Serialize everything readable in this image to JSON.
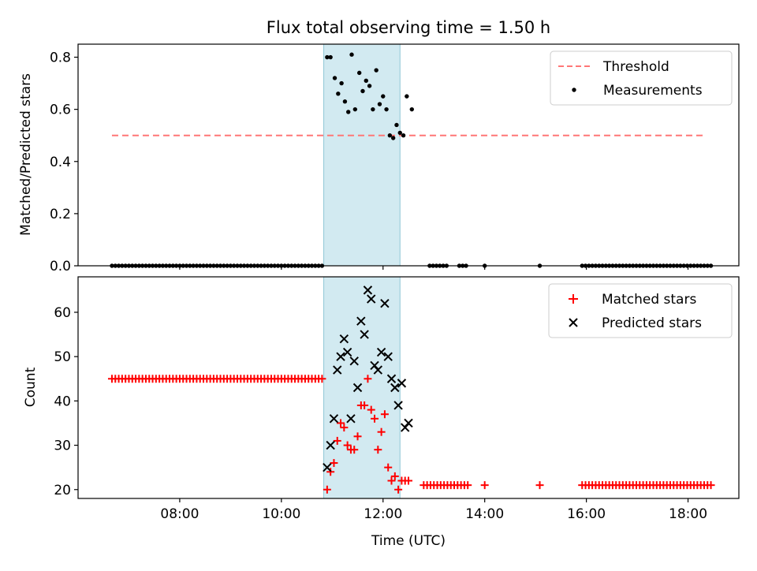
{
  "title": "Flux total observing time = 1.50 h",
  "chart_data": [
    {
      "type": "scatter",
      "ylabel": "Matched/Predicted stars",
      "ylim": [
        0,
        0.85
      ],
      "yticks": [
        0.0,
        0.2,
        0.4,
        0.6,
        0.8
      ],
      "ytick_labels": [
        "0.0",
        "0.2",
        "0.4",
        "0.6",
        "0.8"
      ],
      "xlim": [
        "06:00",
        "19:00"
      ],
      "shaded_span": [
        "10:50",
        "12:20"
      ],
      "shade_color": "#add8e6",
      "legend_position": "upper right",
      "series": [
        {
          "name": "Threshold",
          "style": "dashed-line",
          "color": "#ff7777",
          "x": [
            "06:40",
            "18:20"
          ],
          "y": [
            0.5,
            0.5
          ]
        },
        {
          "name": "Measurements",
          "style": "dot",
          "color": "#000000",
          "points": [
            [
              "10:54",
              0.8
            ],
            [
              "10:58",
              0.8
            ],
            [
              "11:03",
              0.72
            ],
            [
              "11:07",
              0.66
            ],
            [
              "11:11",
              0.7
            ],
            [
              "11:15",
              0.63
            ],
            [
              "11:19",
              0.59
            ],
            [
              "11:23",
              0.81
            ],
            [
              "11:27",
              0.6
            ],
            [
              "11:32",
              0.74
            ],
            [
              "11:36",
              0.67
            ],
            [
              "11:40",
              0.71
            ],
            [
              "11:44",
              0.69
            ],
            [
              "11:48",
              0.6
            ],
            [
              "11:52",
              0.75
            ],
            [
              "11:56",
              0.62
            ],
            [
              "12:00",
              0.65
            ],
            [
              "12:04",
              0.6
            ],
            [
              "12:08",
              0.5
            ],
            [
              "12:12",
              0.49
            ],
            [
              "12:16",
              0.54
            ],
            [
              "12:20",
              0.51
            ],
            [
              "12:24",
              0.5
            ],
            [
              "12:28",
              0.65
            ],
            [
              "12:34",
              0.6
            ]
          ],
          "zero_ranges": [
            [
              "06:40",
              "10:48"
            ],
            [
              "12:55",
              "13:15"
            ],
            [
              "13:30",
              "13:40"
            ],
            [
              "15:55",
              "18:30"
            ]
          ],
          "zero_points": [
            "14:00",
            "15:05"
          ]
        }
      ]
    },
    {
      "type": "scatter",
      "xlabel": "Time (UTC)",
      "ylabel": "Count",
      "ylim": [
        18,
        68
      ],
      "yticks": [
        20,
        30,
        40,
        50,
        60
      ],
      "ytick_labels": [
        "20",
        "30",
        "40",
        "50",
        "60"
      ],
      "xlim": [
        "06:00",
        "19:00"
      ],
      "xticks": [
        "08:00",
        "10:00",
        "12:00",
        "14:00",
        "16:00",
        "18:00"
      ],
      "xtick_labels": [
        "08:00",
        "10:00",
        "12:00",
        "14:00",
        "16:00",
        "18:00"
      ],
      "shaded_span": [
        "10:50",
        "12:20"
      ],
      "shade_color": "#add8e6",
      "legend_position": "upper right",
      "series": [
        {
          "name": "Matched stars",
          "marker": "plus",
          "color": "#ff0000",
          "constant_ranges": [
            {
              "from": "06:40",
              "to": "10:48",
              "value": 45
            },
            {
              "from": "12:48",
              "to": "13:40",
              "value": 21
            },
            {
              "from": "15:55",
              "to": "18:30",
              "value": 21
            }
          ],
          "points": [
            [
              "10:54",
              20
            ],
            [
              "10:58",
              24
            ],
            [
              "11:02",
              26
            ],
            [
              "11:06",
              31
            ],
            [
              "11:10",
              35
            ],
            [
              "11:14",
              34
            ],
            [
              "11:18",
              30
            ],
            [
              "11:22",
              29
            ],
            [
              "11:26",
              29
            ],
            [
              "11:30",
              32
            ],
            [
              "11:34",
              39
            ],
            [
              "11:38",
              39
            ],
            [
              "11:42",
              45
            ],
            [
              "11:46",
              38
            ],
            [
              "11:50",
              36
            ],
            [
              "11:54",
              29
            ],
            [
              "11:58",
              33
            ],
            [
              "12:02",
              37
            ],
            [
              "12:06",
              25
            ],
            [
              "12:10",
              22
            ],
            [
              "12:14",
              23
            ],
            [
              "12:18",
              20
            ],
            [
              "12:22",
              22
            ],
            [
              "12:26",
              22
            ],
            [
              "12:30",
              22
            ],
            [
              "14:00",
              21
            ],
            [
              "15:05",
              21
            ]
          ]
        },
        {
          "name": "Predicted stars",
          "marker": "x",
          "color": "#000000",
          "points": [
            [
              "10:54",
              25
            ],
            [
              "10:58",
              30
            ],
            [
              "11:02",
              36
            ],
            [
              "11:06",
              47
            ],
            [
              "11:10",
              50
            ],
            [
              "11:14",
              54
            ],
            [
              "11:18",
              51
            ],
            [
              "11:22",
              36
            ],
            [
              "11:26",
              49
            ],
            [
              "11:30",
              43
            ],
            [
              "11:34",
              58
            ],
            [
              "11:38",
              55
            ],
            [
              "11:42",
              65
            ],
            [
              "11:46",
              63
            ],
            [
              "11:50",
              48
            ],
            [
              "11:54",
              47
            ],
            [
              "11:58",
              51
            ],
            [
              "12:02",
              62
            ],
            [
              "12:06",
              50
            ],
            [
              "12:10",
              45
            ],
            [
              "12:14",
              43
            ],
            [
              "12:18",
              39
            ],
            [
              "12:22",
              44
            ],
            [
              "12:26",
              34
            ],
            [
              "12:30",
              35
            ]
          ]
        }
      ]
    }
  ]
}
